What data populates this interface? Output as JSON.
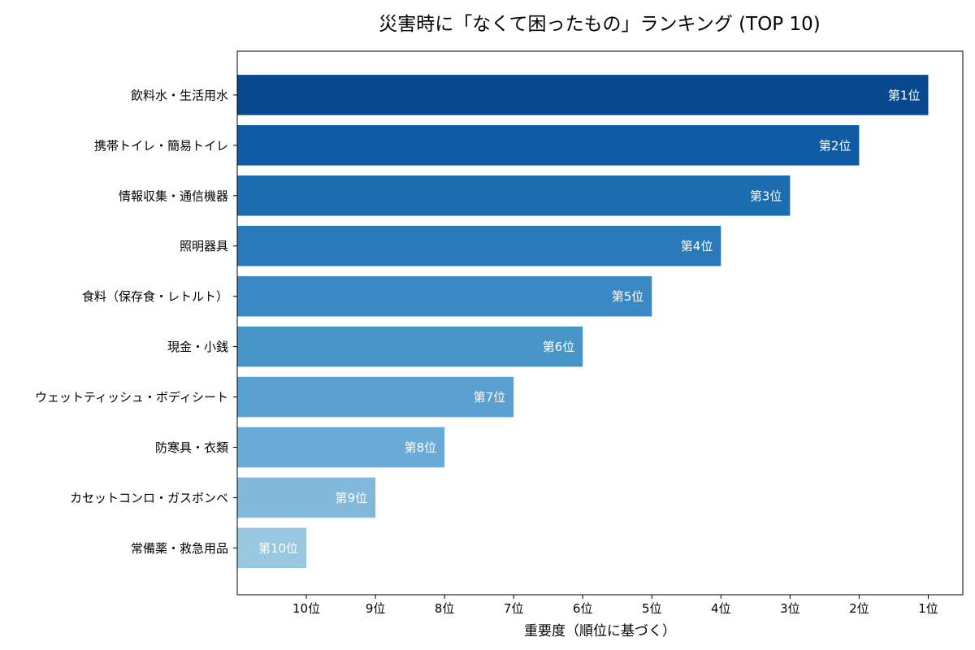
{
  "chart_data": {
    "type": "bar",
    "orientation": "horizontal",
    "title": "災害時に「なくて困ったもの」ランキング (TOP 10)",
    "xlabel": "重要度（順位に基づく）",
    "ylabel": "",
    "categories": [
      "飲料水・生活用水",
      "携帯トイレ・簡易トイレ",
      "情報収集・通信機器",
      "照明器具",
      "食料（保存食・レトルト）",
      "現金・小銭",
      "ウェットティッシュ・ボディシート",
      "防寒具・衣類",
      "カセットコンロ・ガスボンベ",
      "常備薬・救急用品"
    ],
    "values": [
      10,
      9,
      8,
      7,
      6,
      5,
      4,
      3,
      2,
      1
    ],
    "bar_labels": [
      "第1位",
      "第2位",
      "第3位",
      "第4位",
      "第5位",
      "第6位",
      "第7位",
      "第8位",
      "第9位",
      "第10位"
    ],
    "xlim": [
      0,
      10.5
    ],
    "xticks": [
      1,
      2,
      3,
      4,
      5,
      6,
      7,
      8,
      9,
      10
    ],
    "xtick_labels": [
      "10位",
      "9位",
      "8位",
      "7位",
      "6位",
      "5位",
      "4位",
      "3位",
      "2位",
      "1位"
    ],
    "colors": [
      "#08488e",
      "#0f5ca4",
      "#1c6cb0",
      "#2a7aba",
      "#3a89c4",
      "#4896c8",
      "#599fcf",
      "#6aaad6",
      "#82b9db",
      "#98c7e0"
    ],
    "grid": false
  }
}
